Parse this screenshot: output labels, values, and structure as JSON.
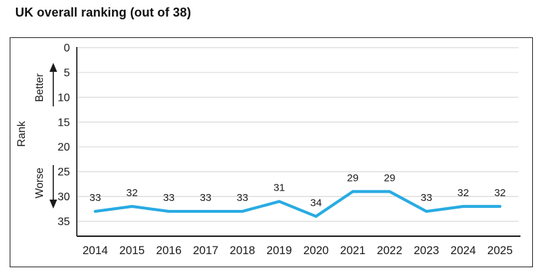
{
  "title": "UK overall ranking (out of 38)",
  "colors": {
    "line": "#29ABE2",
    "grid": "#D9D9D9",
    "y_axis": "#404040",
    "x_axis": "#1A1A1A",
    "text": "#1A1A1A",
    "frame_border": "#1F1F1F"
  },
  "chart_data": {
    "type": "line",
    "title": "UK overall ranking (out of 38)",
    "categories": [
      "2014",
      "2015",
      "2016",
      "2017",
      "2018",
      "2019",
      "2020",
      "2021",
      "2022",
      "2023",
      "2024",
      "2025"
    ],
    "series": [
      {
        "name": "UK overall ranking",
        "values": [
          33,
          32,
          33,
          33,
          33,
          31,
          34,
          29,
          29,
          33,
          32,
          32
        ]
      }
    ],
    "data_labels": [
      "33",
      "32",
      "33",
      "33",
      "33",
      "31",
      "34",
      "29",
      "29",
      "33",
      "32",
      "32"
    ],
    "xlabel": "",
    "ylabel": "Rank",
    "ylim": [
      0,
      38
    ],
    "yticks": [
      0,
      5,
      10,
      15,
      20,
      25,
      30,
      35
    ],
    "y_axis_reversed": true,
    "grid": true,
    "legend_position": "none",
    "annotations": [
      {
        "text": "Better",
        "direction": "up"
      },
      {
        "text": "Worse",
        "direction": "down"
      }
    ]
  }
}
